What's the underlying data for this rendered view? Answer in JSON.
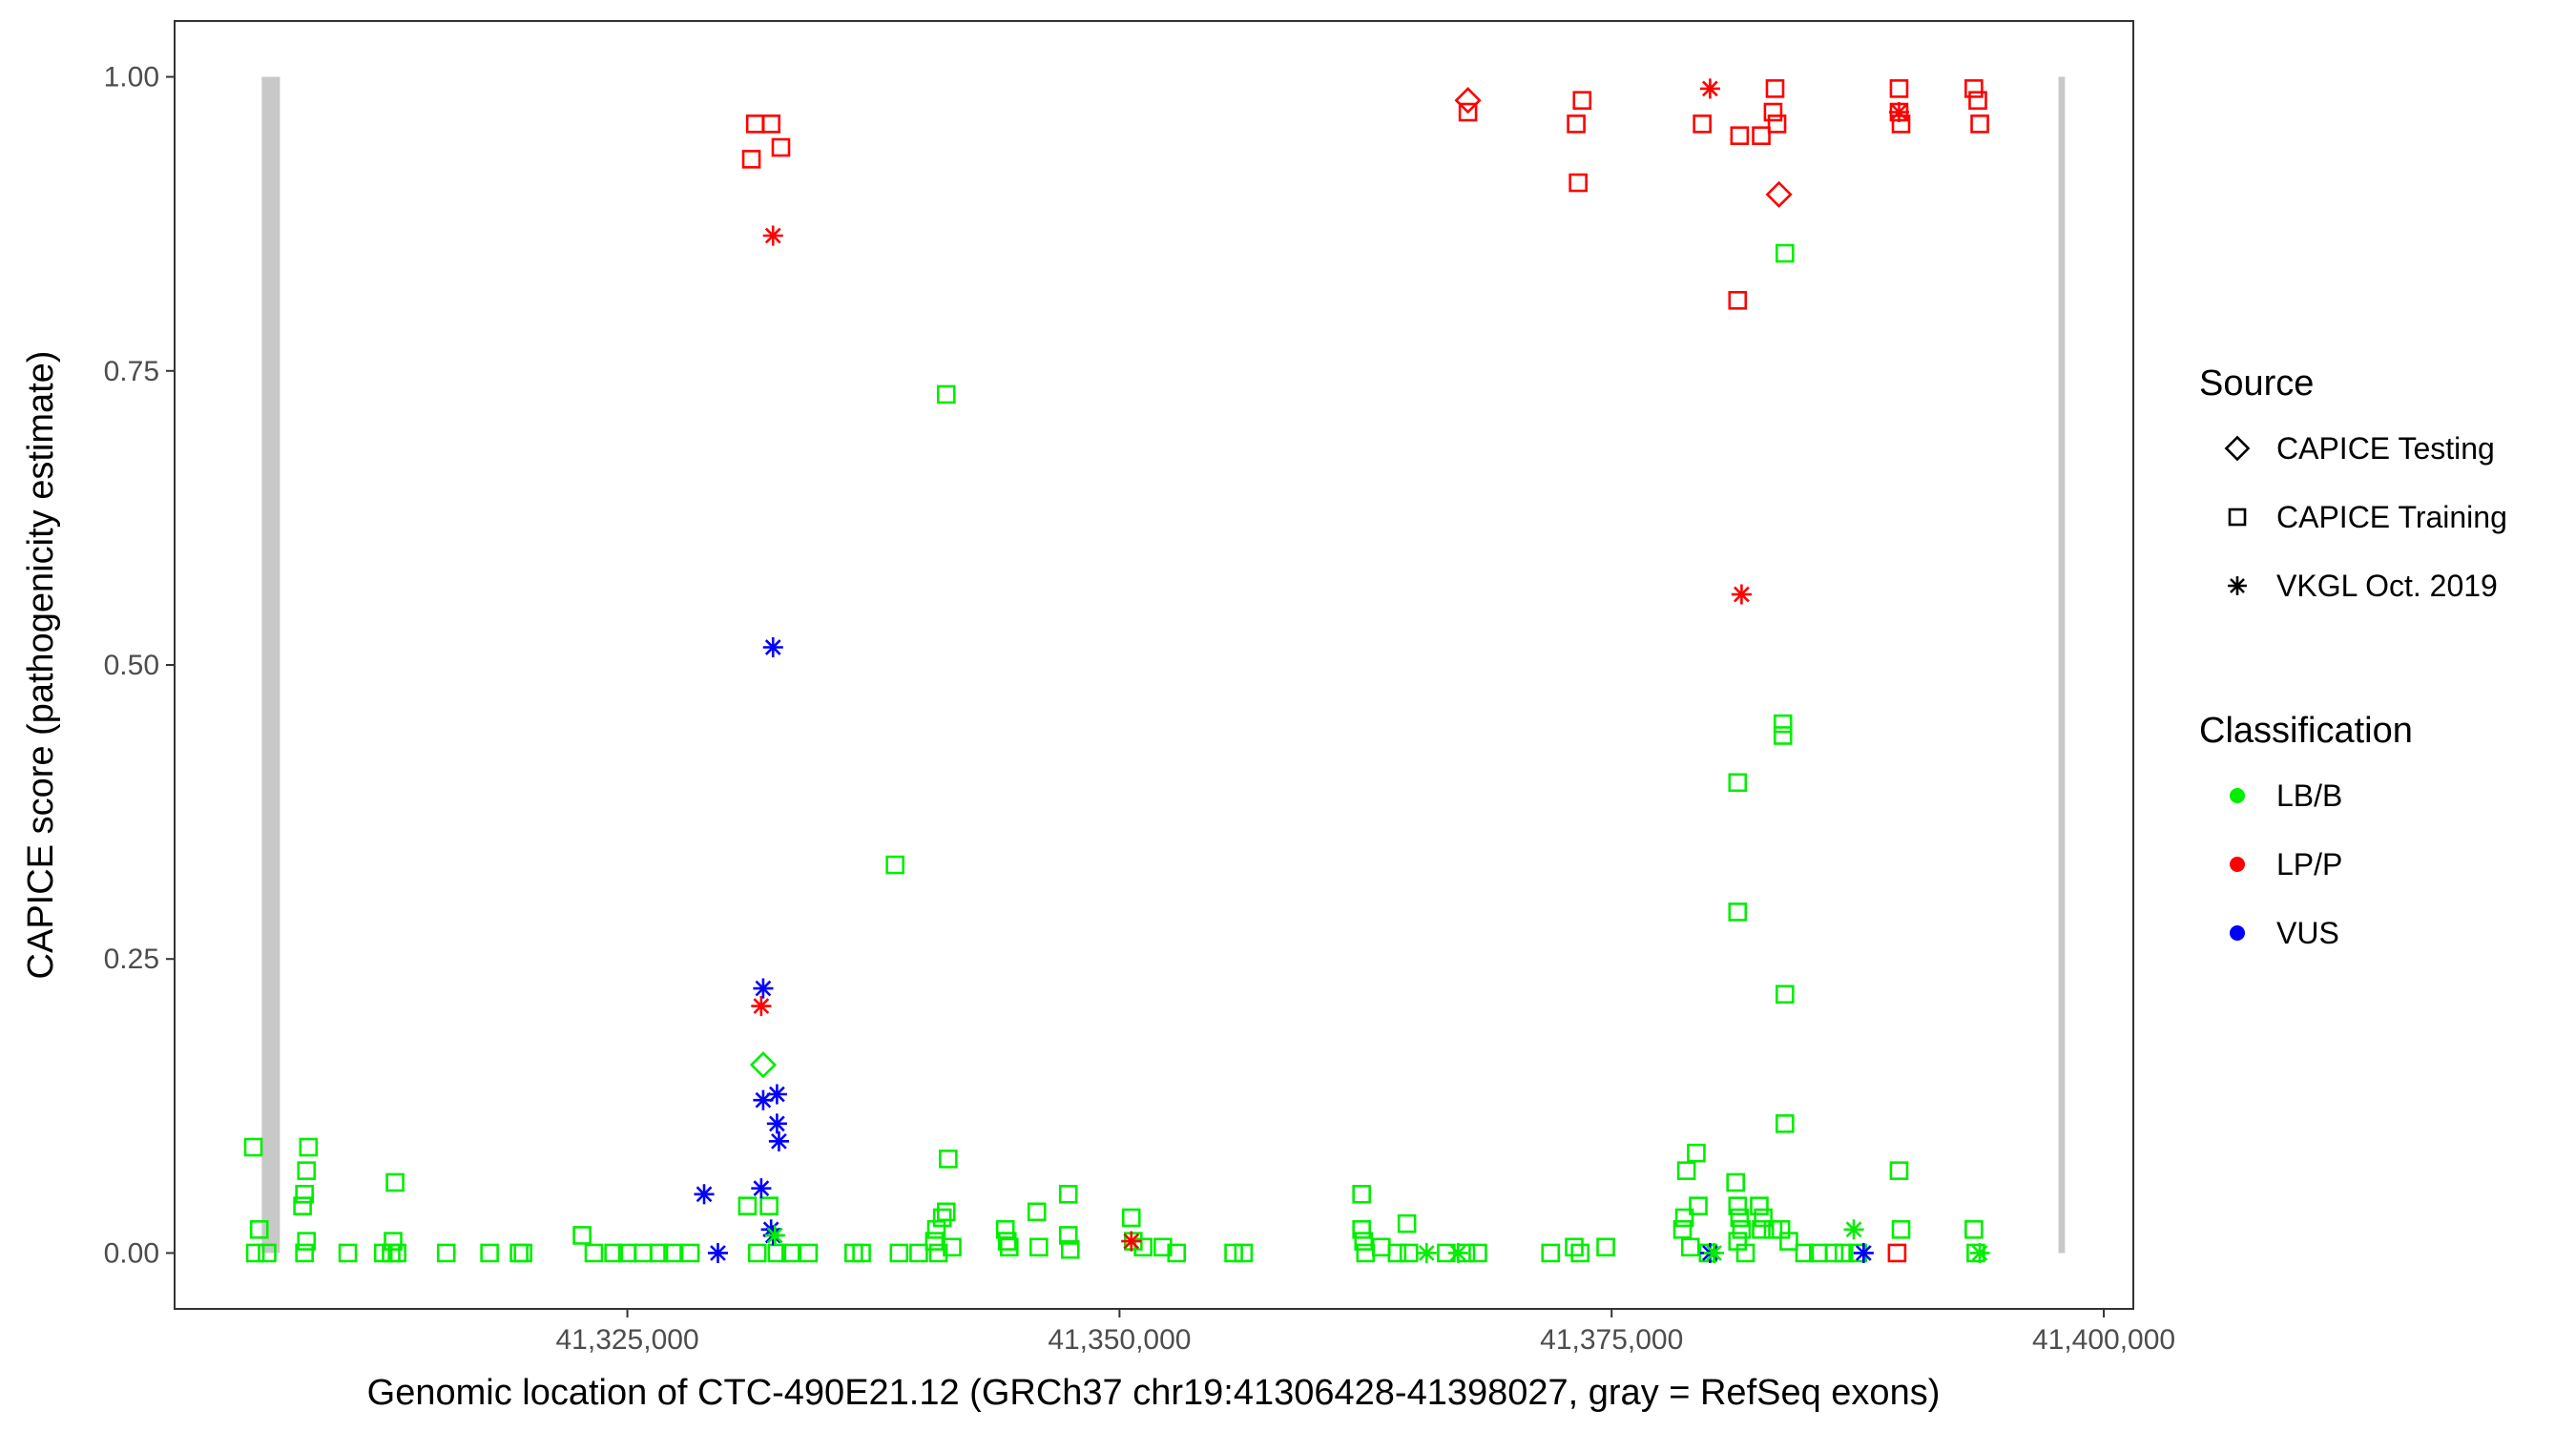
{
  "chart_data": {
    "type": "scatter",
    "xlabel": "Genomic location of CTC-490E21.12 (GRCh37 chr19:41306428-41398027, gray = RefSeq exons)",
    "ylabel": "CAPICE score (pathogenicity estimate)",
    "xlim": [
      41302000,
      41401500
    ],
    "ylim": [
      -0.0475,
      1.0475
    ],
    "x_ticks": [
      41325000,
      41350000,
      41375000,
      41400000
    ],
    "x_tick_labels": [
      "41,325,000",
      "41,350,000",
      "41,375,000",
      "41,400,000"
    ],
    "y_ticks": [
      0,
      0.25,
      0.5,
      0.75,
      1
    ],
    "y_tick_labels": [
      "0.00",
      "0.25",
      "0.50",
      "0.75",
      "1.00"
    ],
    "grid": false,
    "legend_position": "right",
    "exons": [
      {
        "start": 41306428,
        "end": 41307350
      },
      {
        "start": 41397700,
        "end": 41398027
      }
    ],
    "colors": {
      "LB/B": "#00ee00",
      "LP/P": "#ff0000",
      "VUS": "#0000ff",
      "exon": "#c8c8c8"
    },
    "legend": {
      "source_title": "Source",
      "source_items": [
        {
          "label": "CAPICE Testing",
          "shape": "diamond"
        },
        {
          "label": "CAPICE Training",
          "shape": "square"
        },
        {
          "label": "VKGL Oct. 2019",
          "shape": "asterisk"
        }
      ],
      "class_title": "Classification",
      "class_items": [
        {
          "label": "LB/B",
          "color_key": "LB/B"
        },
        {
          "label": "LP/P",
          "color_key": "LP/P"
        },
        {
          "label": "VUS",
          "color_key": "VUS"
        }
      ]
    },
    "series": [
      {
        "name": "CAPICE Training",
        "shape": "square",
        "groups": [
          {
            "classification": "LP/P",
            "points": [
              [
                41331500,
                0.96
              ],
              [
                41332300,
                0.96
              ],
              [
                41331300,
                0.93
              ],
              [
                41332800,
                0.94
              ],
              [
                41367700,
                0.97
              ],
              [
                41373500,
                0.98
              ],
              [
                41373200,
                0.96
              ],
              [
                41373300,
                0.91
              ],
              [
                41379600,
                0.96
              ],
              [
                41381500,
                0.95
              ],
              [
                41382600,
                0.95
              ],
              [
                41383300,
                0.99
              ],
              [
                41383200,
                0.97
              ],
              [
                41383400,
                0.96
              ],
              [
                41389600,
                0.99
              ],
              [
                41389600,
                0.97
              ],
              [
                41389700,
                0.96
              ],
              [
                41393400,
                0.99
              ],
              [
                41393600,
                0.98
              ],
              [
                41393700,
                0.96
              ],
              [
                41381400,
                0.81
              ],
              [
                41389500,
                0.0
              ]
            ]
          },
          {
            "classification": "LB/B",
            "points": [
              [
                41306000,
                0.09
              ],
              [
                41306300,
                0.02
              ],
              [
                41306100,
                0.0
              ],
              [
                41306700,
                0.0
              ],
              [
                41308800,
                0.09
              ],
              [
                41308700,
                0.07
              ],
              [
                41308600,
                0.05
              ],
              [
                41308500,
                0.04
              ],
              [
                41308700,
                0.01
              ],
              [
                41308600,
                0.0
              ],
              [
                41310800,
                0.0
              ],
              [
                41313000,
                0.0
              ],
              [
                41313200,
                0.06
              ],
              [
                41313100,
                0.01
              ],
              [
                41313300,
                0.0
              ],
              [
                41312600,
                0.0
              ],
              [
                41315800,
                0.0
              ],
              [
                41318000,
                0.0
              ],
              [
                41319500,
                0.0
              ],
              [
                41319700,
                0.0
              ],
              [
                41322700,
                0.015
              ],
              [
                41323300,
                0.0
              ],
              [
                41324300,
                0.0
              ],
              [
                41325000,
                0.0
              ],
              [
                41325800,
                0.0
              ],
              [
                41326600,
                0.0
              ],
              [
                41327300,
                0.0
              ],
              [
                41328200,
                0.0
              ],
              [
                41331100,
                0.04
              ],
              [
                41332200,
                0.04
              ],
              [
                41331600,
                0.0
              ],
              [
                41332600,
                0.0
              ],
              [
                41333300,
                0.0
              ],
              [
                41334200,
                0.0
              ],
              [
                41336500,
                0.0
              ],
              [
                41336900,
                0.0
              ],
              [
                41338600,
                0.33
              ],
              [
                41341200,
                0.73
              ],
              [
                41341300,
                0.08
              ],
              [
                41341200,
                0.035
              ],
              [
                41341000,
                0.03
              ],
              [
                41340700,
                0.02
              ],
              [
                41340600,
                0.01
              ],
              [
                41340800,
                0.0
              ],
              [
                41341500,
                0.005
              ],
              [
                41338800,
                0.0
              ],
              [
                41339800,
                0.0
              ],
              [
                41344200,
                0.02
              ],
              [
                41344300,
                0.01
              ],
              [
                41344400,
                0.005
              ],
              [
                41345800,
                0.035
              ],
              [
                41345900,
                0.005
              ],
              [
                41347400,
                0.05
              ],
              [
                41347400,
                0.015
              ],
              [
                41347500,
                0.003
              ],
              [
                41350600,
                0.03
              ],
              [
                41350700,
                0.01
              ],
              [
                41351200,
                0.005
              ],
              [
                41352200,
                0.005
              ],
              [
                41352900,
                0.0
              ],
              [
                41355800,
                0.0
              ],
              [
                41356300,
                0.0
              ],
              [
                41362300,
                0.05
              ],
              [
                41362300,
                0.02
              ],
              [
                41362400,
                0.01
              ],
              [
                41362500,
                0.0
              ],
              [
                41363300,
                0.005
              ],
              [
                41364100,
                0.0
              ],
              [
                41364600,
                0.025
              ],
              [
                41364700,
                0.0
              ],
              [
                41366600,
                0.0
              ],
              [
                41367600,
                0.0
              ],
              [
                41368200,
                0.0
              ],
              [
                41371900,
                0.0
              ],
              [
                41373100,
                0.005
              ],
              [
                41373400,
                0.0
              ],
              [
                41374700,
                0.005
              ],
              [
                41378800,
                0.07
              ],
              [
                41379300,
                0.085
              ],
              [
                41379400,
                0.04
              ],
              [
                41378700,
                0.03
              ],
              [
                41378600,
                0.02
              ],
              [
                41379000,
                0.005
              ],
              [
                41379900,
                0.0
              ],
              [
                41381400,
                0.4
              ],
              [
                41381400,
                0.29
              ],
              [
                41383800,
                0.85
              ],
              [
                41383700,
                0.45
              ],
              [
                41383700,
                0.44
              ],
              [
                41383800,
                0.22
              ],
              [
                41383800,
                0.11
              ],
              [
                41381300,
                0.06
              ],
              [
                41381400,
                0.04
              ],
              [
                41381500,
                0.03
              ],
              [
                41381600,
                0.02
              ],
              [
                41381400,
                0.01
              ],
              [
                41382500,
                0.04
              ],
              [
                41382700,
                0.03
              ],
              [
                41382600,
                0.02
              ],
              [
                41383200,
                0.02
              ],
              [
                41383600,
                0.02
              ],
              [
                41384000,
                0.01
              ],
              [
                41385500,
                0.0
              ],
              [
                41386300,
                0.0
              ],
              [
                41386800,
                0.0
              ],
              [
                41389600,
                0.07
              ],
              [
                41389700,
                0.02
              ],
              [
                41393400,
                0.02
              ],
              [
                41393500,
                0.0
              ],
              [
                41387500,
                0.0
              ],
              [
                41384800,
                0.0
              ],
              [
                41381800,
                0.0
              ]
            ]
          }
        ]
      },
      {
        "name": "CAPICE Testing",
        "shape": "diamond",
        "groups": [
          {
            "classification": "LP/P",
            "points": [
              [
                41367700,
                0.98
              ],
              [
                41383500,
                0.9
              ]
            ]
          },
          {
            "classification": "LB/B",
            "points": [
              [
                41331900,
                0.16
              ]
            ]
          }
        ]
      },
      {
        "name": "VKGL Oct. 2019",
        "shape": "asterisk",
        "groups": [
          {
            "classification": "LP/P",
            "points": [
              [
                41332400,
                0.865
              ],
              [
                41331800,
                0.21
              ],
              [
                41380000,
                0.99
              ],
              [
                41381600,
                0.56
              ],
              [
                41389600,
                0.97
              ],
              [
                41350600,
                0.01
              ]
            ]
          },
          {
            "classification": "VUS",
            "points": [
              [
                41332400,
                0.515
              ],
              [
                41331900,
                0.225
              ],
              [
                41331900,
                0.13
              ],
              [
                41332600,
                0.135
              ],
              [
                41332600,
                0.11
              ],
              [
                41332700,
                0.095
              ],
              [
                41331800,
                0.055
              ],
              [
                41328900,
                0.05
              ],
              [
                41332300,
                0.02
              ],
              [
                41332400,
                0.015
              ],
              [
                41329600,
                0.0
              ],
              [
                41380000,
                0.0
              ],
              [
                41387800,
                0.0
              ]
            ]
          },
          {
            "classification": "LB/B",
            "points": [
              [
                41332500,
                0.015
              ],
              [
                41387300,
                0.02
              ],
              [
                41365600,
                0.0
              ],
              [
                41367200,
                0.0
              ],
              [
                41380200,
                0.0
              ],
              [
                41393700,
                0.0
              ]
            ]
          }
        ]
      }
    ]
  }
}
